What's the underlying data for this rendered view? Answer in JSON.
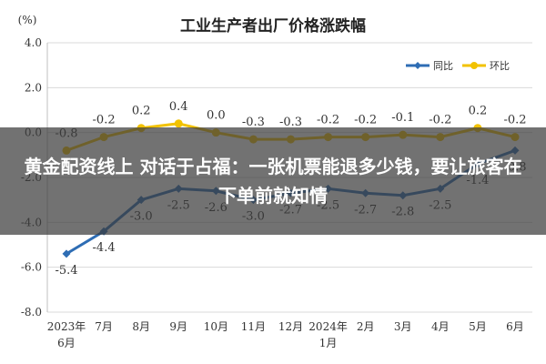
{
  "chart_data": {
    "type": "line",
    "title": "工业生产者出厂价格涨跌幅",
    "y_unit": "(%)",
    "ylim": [
      -8.0,
      4.0
    ],
    "y_ticks": [
      "4.0",
      "2.0",
      "0.0",
      "-2.0",
      "-4.0",
      "-6.0",
      "-8.0"
    ],
    "y_tick_values": [
      4,
      2,
      0,
      -2,
      -4,
      -6,
      -8
    ],
    "grid": true,
    "legend_position": "top-right",
    "categories": [
      [
        "2023年",
        "6月"
      ],
      [
        "7月"
      ],
      [
        "8月"
      ],
      [
        "9月"
      ],
      [
        "10月"
      ],
      [
        "11月"
      ],
      [
        "12月"
      ],
      [
        "2024年",
        "1月"
      ],
      [
        "2月"
      ],
      [
        "3月"
      ],
      [
        "4月"
      ],
      [
        "5月"
      ],
      [
        "6月"
      ]
    ],
    "series": [
      {
        "name": "同比",
        "color": "#2e6db4",
        "values": [
          -5.4,
          -4.4,
          -3.0,
          -2.5,
          -2.6,
          -3.0,
          -2.7,
          -2.5,
          -2.7,
          -2.8,
          -2.5,
          -1.4,
          -0.8
        ],
        "labels": [
          "-5.4",
          "-4.4",
          "-3.0",
          "-2.5",
          "-2.6",
          "-3.0",
          "-2.7",
          "-2.5",
          "-2.7",
          "-2.8",
          "-2.5",
          "-1.4",
          "-0.8"
        ]
      },
      {
        "name": "环比",
        "color": "#f2c200",
        "values": [
          -0.8,
          -0.2,
          0.2,
          0.4,
          0.0,
          -0.3,
          -0.3,
          -0.2,
          -0.2,
          -0.1,
          -0.2,
          0.2,
          -0.2
        ],
        "labels": [
          "-0.8",
          "-0.2",
          "0.2",
          "0.4",
          "0.0",
          "-0.3",
          "-0.3",
          "-0.2",
          "-0.2",
          "-0.1",
          "-0.2",
          "0.2",
          "-0.2"
        ]
      }
    ]
  },
  "overlay": {
    "headline": "黄金配资线上 对话于占福：一张机票能退多少钱，要让旅客在下单前就知情"
  }
}
